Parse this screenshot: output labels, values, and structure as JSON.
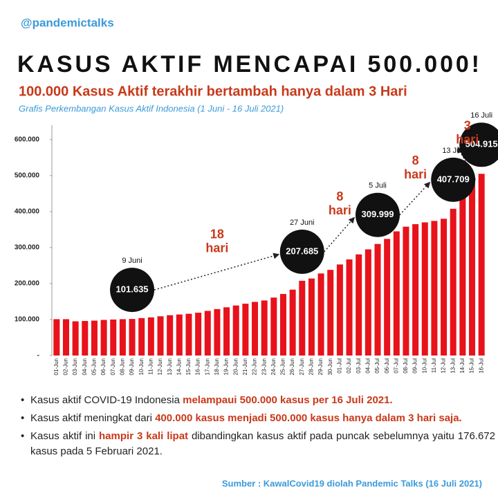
{
  "handle": "@pandemictalks",
  "chart_data": {
    "type": "bar",
    "title": "KASUS AKTIF MENCAPAI 500.000!",
    "subtitle": "100.000 Kasus Aktif terakhir bertambah hanya dalam 3 Hari",
    "caption": "Grafis Perkembangan Kasus Aktif Indonesia (1 Juni - 16 Juli 2021)",
    "categories": [
      "01-Jun",
      "02-Jun",
      "03-Jun",
      "04-Jun",
      "05-Jun",
      "06-Jun",
      "07-Jun",
      "08-Jun",
      "09-Jun",
      "10-Jun",
      "11-Jun",
      "12-Jun",
      "13-Jun",
      "14-Jun",
      "15-Jun",
      "16-Jun",
      "17-Jun",
      "18-Jun",
      "19-Jun",
      "20-Jun",
      "21-Jun",
      "22-Jun",
      "23-Jun",
      "24-Jun",
      "25-Jun",
      "26-Jun",
      "27-Jun",
      "28-Jun",
      "29-Jun",
      "30-Jun",
      "01-Jul",
      "02-Jul",
      "03-Jul",
      "04-Jul",
      "05-Jul",
      "06-Jul",
      "07-Jul",
      "08-Jul",
      "09-Jul",
      "10-Jul",
      "11-Jul",
      "12-Jul",
      "13-Jul",
      "14-Jul",
      "15-Jul",
      "16-Jul"
    ],
    "values": [
      101000,
      101000,
      95000,
      96000,
      97000,
      99000,
      100000,
      101000,
      101635,
      104000,
      106000,
      109000,
      112000,
      114000,
      116000,
      119000,
      124000,
      129000,
      134000,
      139000,
      144000,
      149000,
      153000,
      161000,
      171000,
      183000,
      207685,
      214000,
      228000,
      238000,
      253000,
      267000,
      281000,
      295000,
      309999,
      324000,
      345000,
      358000,
      365000,
      370000,
      374000,
      380000,
      407709,
      441000,
      480000,
      504915
    ],
    "value_labels": [
      null,
      null,
      null,
      null,
      null,
      null,
      null,
      null,
      "101.635",
      null,
      null,
      null,
      null,
      null,
      null,
      null,
      null,
      null,
      null,
      null,
      null,
      null,
      null,
      null,
      null,
      null,
      "207.685",
      null,
      null,
      null,
      null,
      null,
      null,
      null,
      "309.999",
      null,
      null,
      null,
      null,
      null,
      null,
      null,
      "407.709",
      null,
      null,
      "504.915"
    ],
    "date_labels": [
      null,
      null,
      null,
      null,
      null,
      null,
      null,
      null,
      "9 Juni",
      null,
      null,
      null,
      null,
      null,
      null,
      null,
      null,
      null,
      null,
      null,
      null,
      null,
      null,
      null,
      null,
      null,
      "27 Juni",
      null,
      null,
      null,
      null,
      null,
      null,
      null,
      "5 Juli",
      null,
      null,
      null,
      null,
      null,
      null,
      null,
      "13 Juli",
      null,
      null,
      "16 Juli"
    ],
    "intervals": [
      {
        "number": "18",
        "unit": "hari"
      },
      {
        "number": "8",
        "unit": "hari"
      },
      {
        "number": "8",
        "unit": "hari"
      },
      {
        "number": "3",
        "unit": "hari"
      }
    ],
    "color": "#e8121b",
    "ylim": [
      0,
      640000
    ],
    "yticks": [
      {
        "value": 0,
        "label": "-"
      },
      {
        "value": 100000,
        "label": "100.000"
      },
      {
        "value": 200000,
        "label": "200.000"
      },
      {
        "value": 300000,
        "label": "300.000"
      },
      {
        "value": 400000,
        "label": "400.000"
      },
      {
        "value": 500000,
        "label": "500.000"
      },
      {
        "value": 600000,
        "label": "600.000"
      }
    ]
  },
  "bullets": [
    [
      {
        "text": "Kasus aktif COVID-19 Indonesia ",
        "red": false
      },
      {
        "text": "melampaui 500.000 kasus per 16 Juli 2021.",
        "red": true
      }
    ],
    [
      {
        "text": "Kasus aktif meningkat dari ",
        "red": false
      },
      {
        "text": "400.000 kasus menjadi 500.000 kasus hanya dalam 3 hari saja.",
        "red": true
      }
    ],
    [
      {
        "text": "Kasus aktif ini ",
        "red": false
      },
      {
        "text": "hampir 3 kali lipat",
        "red": true
      },
      {
        "text": " dibandingkan kasus aktif pada puncak sebelumnya yaitu 176.672 kasus pada 5 Februari 2021.",
        "red": false
      }
    ]
  ],
  "source": "Sumber : KawalCovid19 diolah Pandemic Talks (16 Juli 2021)"
}
